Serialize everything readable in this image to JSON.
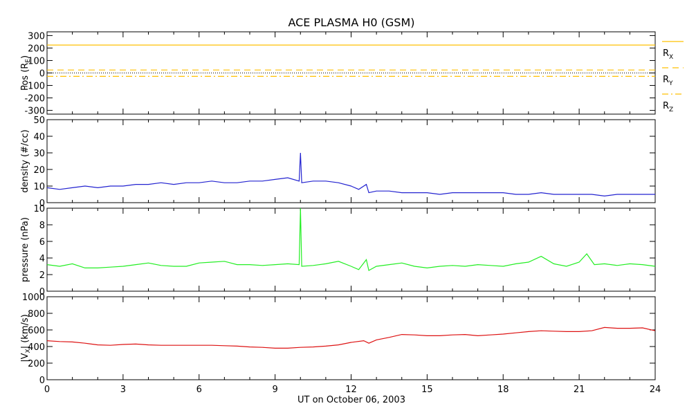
{
  "title": "ACE PLASMA H0 (GSM)",
  "xlabel": "UT on October 06, 2003",
  "colors": {
    "position": "#ffc000",
    "density": "#2222d0",
    "pressure": "#22ee22",
    "velocity": "#dd1111",
    "zero_line": "#000000"
  },
  "chart_data": [
    {
      "type": "line",
      "panel": "position",
      "ylabel": "Pos (R",
      "ylabel_sub": "E",
      "ylabel_end": ")",
      "ylim": [
        -330,
        330
      ],
      "yticks": [
        -300,
        -200,
        -100,
        0,
        100,
        200,
        300
      ],
      "xlim": [
        0,
        24
      ],
      "xticks": [
        0,
        3,
        6,
        9,
        12,
        15,
        18,
        21,
        24
      ],
      "legend_placement": "right",
      "series": [
        {
          "name": "R",
          "sub": "X",
          "style": "solid",
          "x": [
            0,
            24
          ],
          "values": [
            224,
            224
          ]
        },
        {
          "name": "R",
          "sub": "Y",
          "style": "dashed",
          "x": [
            0,
            24
          ],
          "values": [
            24,
            24
          ]
        },
        {
          "name": "R",
          "sub": "Z",
          "style": "dashdot",
          "x": [
            0,
            24
          ],
          "values": [
            -27,
            -27
          ]
        }
      ],
      "zero_line": true
    },
    {
      "type": "line",
      "panel": "density",
      "ylabel": "density (#/cc)",
      "ylim": [
        0,
        50
      ],
      "yticks": [
        0,
        10,
        20,
        30,
        40,
        50
      ],
      "xlim": [
        0,
        24
      ],
      "series": [
        {
          "x": [
            0,
            0.5,
            1,
            1.5,
            2,
            2.5,
            3,
            3.5,
            4,
            4.5,
            5,
            5.5,
            6,
            6.5,
            7,
            7.5,
            8,
            8.5,
            9,
            9.5,
            9.95,
            10.0,
            10.05,
            10.5,
            11,
            11.5,
            12,
            12.3,
            12.6,
            12.7,
            13,
            13.5,
            14,
            14.5,
            15,
            15.5,
            16,
            16.5,
            17,
            17.5,
            18,
            18.5,
            19,
            19.5,
            20,
            20.5,
            21,
            21.5,
            22,
            22.5,
            23,
            23.5,
            24
          ],
          "values": [
            9,
            8,
            9,
            10,
            9,
            10,
            10,
            11,
            11,
            12,
            11,
            12,
            12,
            13,
            12,
            12,
            13,
            13,
            14,
            15,
            13,
            30,
            12,
            13,
            13,
            12,
            10,
            8,
            11,
            6,
            7,
            7,
            6,
            6,
            6,
            5,
            6,
            6,
            6,
            6,
            6,
            5,
            5,
            6,
            5,
            5,
            5,
            5,
            4,
            5,
            5,
            5,
            5
          ]
        }
      ]
    },
    {
      "type": "line",
      "panel": "pressure",
      "ylabel": "pressure (nPa)",
      "ylim": [
        0,
        10
      ],
      "yticks": [
        0,
        2,
        4,
        6,
        8,
        10
      ],
      "xlim": [
        0,
        24
      ],
      "series": [
        {
          "x": [
            0,
            0.5,
            1,
            1.5,
            2,
            2.5,
            3,
            3.5,
            4,
            4.5,
            5,
            5.5,
            6,
            6.5,
            7,
            7.5,
            8,
            8.5,
            9,
            9.5,
            9.95,
            10.0,
            10.05,
            10.5,
            11,
            11.5,
            12,
            12.3,
            12.6,
            12.7,
            13,
            13.5,
            14,
            14.5,
            15,
            15.5,
            16,
            16.5,
            17,
            17.5,
            18,
            18.5,
            19,
            19.5,
            20,
            20.5,
            21,
            21.3,
            21.6,
            22,
            22.5,
            23,
            23.5,
            24
          ],
          "values": [
            3.2,
            3.0,
            3.3,
            2.8,
            2.8,
            2.9,
            3.0,
            3.2,
            3.4,
            3.1,
            3.0,
            3.0,
            3.4,
            3.5,
            3.6,
            3.2,
            3.2,
            3.1,
            3.2,
            3.3,
            3.2,
            10.0,
            3.0,
            3.1,
            3.3,
            3.6,
            3.0,
            2.6,
            3.8,
            2.5,
            3.0,
            3.2,
            3.4,
            3.0,
            2.8,
            3.0,
            3.1,
            3.0,
            3.2,
            3.1,
            3.0,
            3.3,
            3.5,
            4.2,
            3.3,
            3.0,
            3.5,
            4.5,
            3.2,
            3.3,
            3.1,
            3.3,
            3.2,
            3.0
          ]
        }
      ]
    },
    {
      "type": "line",
      "panel": "velocity",
      "ylabel": "|V",
      "ylabel_sub": "X",
      "ylabel_end": "| (km/s)",
      "ylim": [
        0,
        1000
      ],
      "yticks": [
        0,
        200,
        400,
        600,
        800,
        1000
      ],
      "xlim": [
        0,
        24
      ],
      "series": [
        {
          "x": [
            0,
            0.5,
            1,
            1.5,
            2,
            2.5,
            3,
            3.5,
            4,
            4.5,
            5,
            5.5,
            6,
            6.5,
            7,
            7.5,
            8,
            8.5,
            9,
            9.5,
            10,
            10.5,
            11,
            11.5,
            12,
            12.5,
            12.7,
            13,
            13.5,
            14,
            14.5,
            15,
            15.5,
            16,
            16.5,
            17,
            17.5,
            18,
            18.5,
            19,
            19.5,
            20,
            20.5,
            21,
            21.5,
            22,
            22.5,
            23,
            23.5,
            24
          ],
          "values": [
            470,
            460,
            455,
            440,
            420,
            415,
            425,
            430,
            420,
            415,
            415,
            415,
            415,
            415,
            410,
            405,
            395,
            390,
            380,
            380,
            390,
            395,
            405,
            420,
            450,
            470,
            440,
            480,
            510,
            545,
            540,
            530,
            530,
            540,
            545,
            530,
            540,
            550,
            565,
            580,
            590,
            585,
            580,
            580,
            590,
            630,
            620,
            620,
            625,
            590
          ]
        }
      ]
    }
  ]
}
